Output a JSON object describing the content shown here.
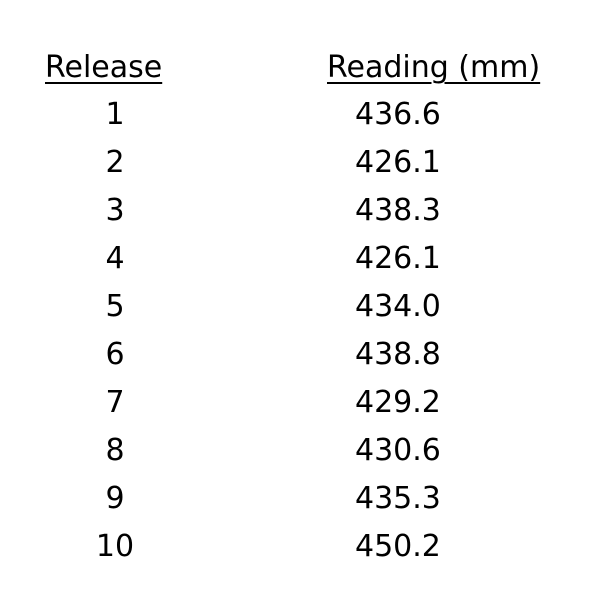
{
  "table": {
    "headers": {
      "release": "Release",
      "reading": "Reading (mm)"
    },
    "rows": [
      {
        "release": "1",
        "reading": "436.6"
      },
      {
        "release": "2",
        "reading": "426.1"
      },
      {
        "release": "3",
        "reading": "438.3"
      },
      {
        "release": "4",
        "reading": "426.1"
      },
      {
        "release": "5",
        "reading": "434.0"
      },
      {
        "release": "6",
        "reading": "438.8"
      },
      {
        "release": "7",
        "reading": "429.2"
      },
      {
        "release": "8",
        "reading": "430.6"
      },
      {
        "release": "9",
        "reading": "435.3"
      },
      {
        "release": "10",
        "reading": "450.2"
      }
    ]
  }
}
